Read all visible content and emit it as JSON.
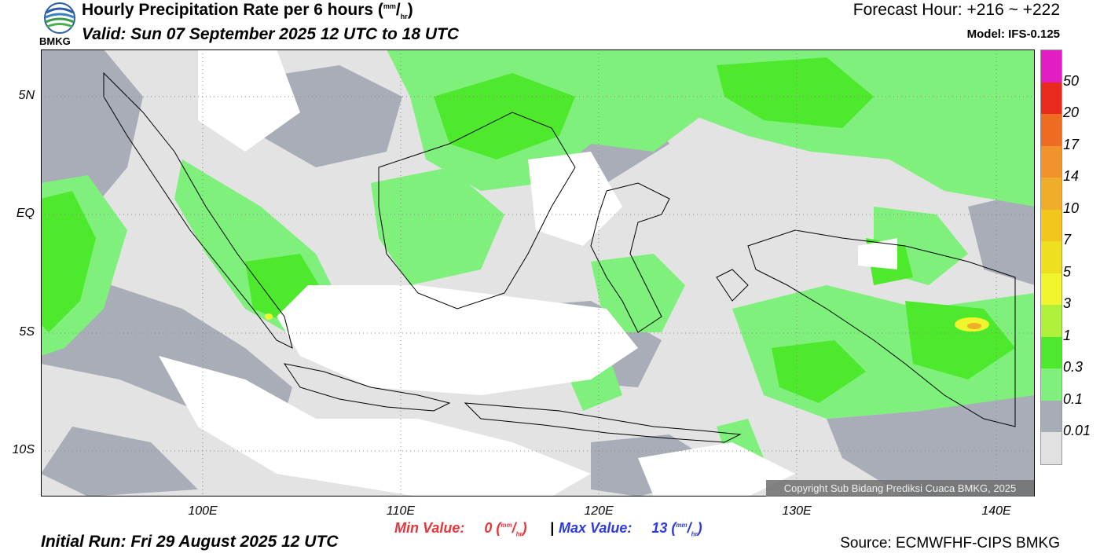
{
  "header": {
    "title_text": "Hourly Precipitation Rate per 6 hours (",
    "title_unit_sup": "mm",
    "title_unit_sep": "/",
    "title_unit_sub": "hr",
    "title_close": ")",
    "valid": "Valid: Sun 07 September 2025 12 UTC to 18 UTC",
    "forecast_hour": "Forecast Hour: +216 ~ +222",
    "model": "Model: IFS-0.125",
    "logo_text": "BMKG"
  },
  "map": {
    "lat_labels": [
      "5N",
      "EQ",
      "5S",
      "10S"
    ],
    "lon_labels": [
      "100E",
      "110E",
      "120E",
      "130E",
      "140E"
    ],
    "copyright": "Copyright Sub Bidang Prediksi Cuaca BMKG, 2025"
  },
  "colorbar": {
    "labels": [
      "50",
      "20",
      "17",
      "14",
      "10",
      "7",
      "5",
      "3",
      "1",
      "0.3",
      "0.1",
      "0.01"
    ],
    "colors": [
      "#e21ec2",
      "#e82a1f",
      "#ee6b22",
      "#f2922a",
      "#f0ad2a",
      "#f2c61d",
      "#eee020",
      "#f1f52d",
      "#aef03a",
      "#4ee82c",
      "#7ef07b",
      "#a8acb6",
      "#e1e1e1"
    ]
  },
  "footer": {
    "min_label": "Min Value:",
    "min_value": "0",
    "max_label": "Max Value:",
    "max_value": "13",
    "unit_sup": "mm",
    "unit_sep": "/",
    "unit_sub": "hr",
    "separator": "|",
    "initial_run": "Initial Run: Fri 29 August 2025 12 UTC",
    "source": "Source: ECMWFHF-CIPS BMKG"
  }
}
